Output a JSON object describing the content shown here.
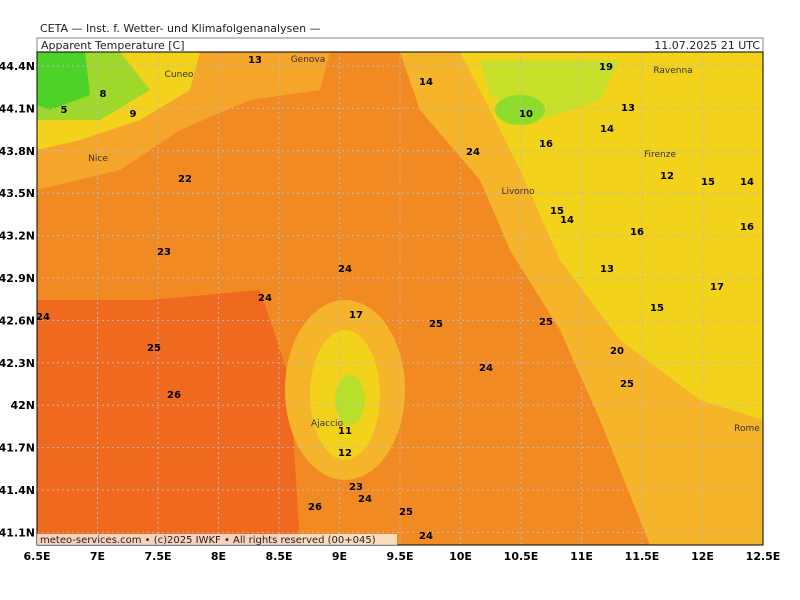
{
  "header": {
    "institute": "CETA — Inst. f. Wetter- und Klimafolgenanalysen —",
    "title": "Apparent Temperature [C]",
    "date": "11.07.2025 21 UTC"
  },
  "x_axis": {
    "labels": [
      "6.5E",
      "7E",
      "7.5E",
      "8E",
      "8.5E",
      "9E",
      "9.5E",
      "10E",
      "10.5E",
      "11E",
      "11.5E",
      "12E",
      "12.5E"
    ]
  },
  "y_axis": {
    "labels": [
      "44.4N",
      "44.1N",
      "43.8N",
      "43.5N",
      "43.2N",
      "42.9N",
      "42.6N",
      "42.3N",
      "42N",
      "41.7N",
      "41.4N",
      "41.1N"
    ]
  },
  "places": [
    "Cuneo",
    "Genova",
    "Ravenna",
    "Nice",
    "Firenze",
    "Livorno",
    "Ajaccio",
    "Rome"
  ],
  "contour_labels": [
    "13",
    "19",
    "14",
    "8",
    "5",
    "9",
    "10",
    "13",
    "14",
    "24",
    "16",
    "22",
    "12",
    "15",
    "14",
    "15",
    "14",
    "16",
    "16",
    "23",
    "13",
    "24",
    "17",
    "24",
    "15",
    "24",
    "25",
    "25",
    "17",
    "25",
    "20",
    "24",
    "25",
    "26",
    "12",
    "11",
    "23",
    "24",
    "26",
    "25",
    "24"
  ],
  "footer": "meteo-services.com • (c)2025 IWKF • All rights reserved (00+045)"
}
